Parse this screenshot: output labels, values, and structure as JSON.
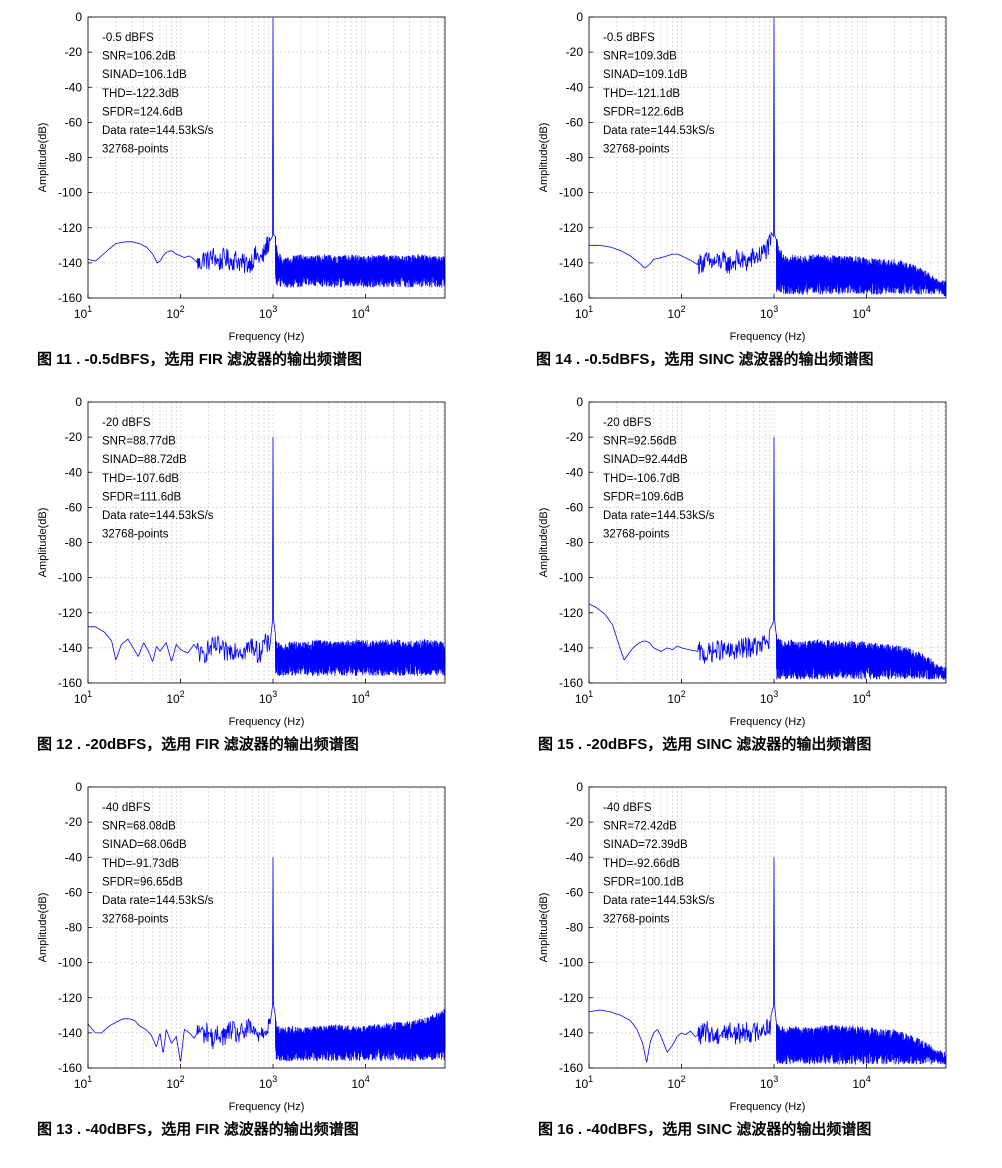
{
  "chart_data": [
    {
      "type": "line",
      "scale": {
        "x": "log",
        "y": "linear"
      },
      "xlabel": "Frequency (Hz)",
      "ylabel": "Amplitude(dB)",
      "xlim": [
        10,
        72265
      ],
      "ylim": [
        -160,
        0
      ],
      "x_ticks": [
        {
          "value": 10,
          "label": "10^1"
        },
        {
          "value": 100,
          "label": "10^2"
        },
        {
          "value": 1000,
          "label": "10^3"
        },
        {
          "value": 10000,
          "label": "10^4"
        }
      ],
      "y_ticks": [
        0,
        -20,
        -40,
        -60,
        -80,
        -100,
        -120,
        -140,
        -160
      ],
      "grid": true,
      "color": "#0000ff",
      "annotations": [
        "-0.5 dBFS",
        "SNR=106.2dB",
        "SINAD=106.1dB",
        "THD=-122.3dB",
        "SFDR=124.6dB",
        "Data rate=144.53kS/s",
        "32768-points"
      ],
      "caption": "图 11 . -0.5dBFS，选用 FIR 滤波器的输出频谱图",
      "series": [
        {
          "x": [
            10,
            12,
            14,
            17,
            20,
            25,
            30,
            36,
            43,
            50,
            56,
            60,
            65,
            70,
            80,
            90,
            100,
            110,
            125,
            140,
            160,
            180,
            200,
            230,
            260,
            300,
            350,
            400,
            480,
            560,
            650,
            760,
            880,
            940,
            970,
            1000,
            1030,
            1060,
            1150,
            1300,
            1600,
            2000,
            2600,
            3500,
            5000,
            7000,
            10000,
            15000,
            25000,
            40000,
            60000,
            72265
          ],
          "y": [
            -138,
            -139,
            -136,
            -132,
            -129,
            -128,
            -128,
            -129,
            -131,
            -135,
            -140,
            -139,
            -136,
            -134,
            -133,
            -135,
            -136,
            -137,
            -136,
            -138,
            -141,
            -137,
            -139,
            -136,
            -140,
            -137,
            -139,
            -138,
            -141,
            -140,
            -136,
            -138,
            -129,
            -126,
            -110,
            -0.5,
            -115,
            -128,
            -138,
            -141,
            -140,
            -139,
            -140,
            -139,
            -140,
            -139,
            -140,
            -139,
            -140,
            -139,
            -140,
            -140
          ],
          "noise_floor": [
            -154,
            -134
          ]
        }
      ]
    },
    {
      "type": "line",
      "scale": {
        "x": "log",
        "y": "linear"
      },
      "xlabel": "Frequency (Hz)",
      "ylabel": "Amplitude(dB)",
      "xlim": [
        10,
        72265
      ],
      "ylim": [
        -160,
        0
      ],
      "x_ticks": [
        {
          "value": 10,
          "label": "10^1"
        },
        {
          "value": 100,
          "label": "10^2"
        },
        {
          "value": 1000,
          "label": "10^3"
        },
        {
          "value": 10000,
          "label": "10^4"
        }
      ],
      "y_ticks": [
        0,
        -20,
        -40,
        -60,
        -80,
        -100,
        -120,
        -140,
        -160
      ],
      "grid": true,
      "color": "#0000ff",
      "annotations": [
        "-0.5 dBFS",
        "SNR=109.3dB",
        "SINAD=109.1dB",
        "THD=-121.1dB",
        "SFDR=122.6dB",
        "Data rate=144.53kS/s",
        "32768-points"
      ],
      "caption": "图 14 . -0.5dBFS，选用 SINC 滤波器的输出频谱图",
      "series": [
        {
          "x": [
            10,
            13,
            17,
            22,
            28,
            35,
            40,
            45,
            50,
            60,
            70,
            80,
            90,
            100,
            120,
            150,
            180,
            220,
            270,
            330,
            400,
            500,
            600,
            700,
            800,
            900,
            960,
            1000,
            1040,
            1100,
            1300,
            1600,
            2000,
            3000,
            5000,
            8000,
            12000,
            20000,
            30000,
            40000,
            50000,
            60000,
            72265
          ],
          "y": [
            -130,
            -130,
            -131,
            -133,
            -136,
            -140,
            -143,
            -141,
            -138,
            -137,
            -136,
            -135,
            -135,
            -136,
            -138,
            -141,
            -139,
            -140,
            -139,
            -141,
            -138,
            -140,
            -137,
            -136,
            -133,
            -130,
            -126,
            -0.5,
            -124,
            -133,
            -140,
            -139,
            -140,
            -139,
            -140,
            -140,
            -141,
            -142,
            -144,
            -147,
            -150,
            -154,
            -158
          ],
          "noise_floor": [
            -158,
            -134
          ]
        }
      ]
    },
    {
      "type": "line",
      "scale": {
        "x": "log",
        "y": "linear"
      },
      "xlabel": "Frequency (Hz)",
      "ylabel": "Amplitude(dB)",
      "xlim": [
        10,
        72265
      ],
      "ylim": [
        -160,
        0
      ],
      "x_ticks": [
        {
          "value": 10,
          "label": "10^1"
        },
        {
          "value": 100,
          "label": "10^2"
        },
        {
          "value": 1000,
          "label": "10^3"
        },
        {
          "value": 10000,
          "label": "10^4"
        }
      ],
      "y_ticks": [
        0,
        -20,
        -40,
        -60,
        -80,
        -100,
        -120,
        -140,
        -160
      ],
      "grid": true,
      "color": "#0000ff",
      "annotations": [
        "-20 dBFS",
        "SNR=88.77dB",
        "SINAD=88.72dB",
        "THD=-107.6dB",
        "SFDR=111.6dB",
        "Data rate=144.53kS/s",
        "32768-points"
      ],
      "caption": "图 12 . -20dBFS，选用 FIR 滤波器的输出频谱图",
      "series": [
        {
          "x": [
            10,
            12,
            15,
            18,
            20,
            23,
            27,
            30,
            35,
            40,
            45,
            50,
            55,
            60,
            70,
            80,
            90,
            100,
            120,
            140,
            170,
            200,
            250,
            300,
            400,
            500,
            600,
            700,
            800,
            900,
            960,
            1000,
            1040,
            1100,
            1300,
            1600,
            2000,
            3000,
            5000,
            8000,
            12000,
            20000,
            30000,
            45000,
            60000,
            72265
          ],
          "y": [
            -128,
            -128,
            -131,
            -136,
            -147,
            -138,
            -135,
            -139,
            -145,
            -137,
            -142,
            -148,
            -139,
            -142,
            -137,
            -148,
            -138,
            -141,
            -143,
            -138,
            -145,
            -141,
            -139,
            -143,
            -140,
            -142,
            -138,
            -144,
            -137,
            -139,
            -135,
            -20,
            -133,
            -140,
            -142,
            -140,
            -141,
            -139,
            -140,
            -139,
            -140,
            -139,
            -140,
            -139,
            -140,
            -140
          ],
          "noise_floor": [
            -156,
            -136
          ]
        }
      ]
    },
    {
      "type": "line",
      "scale": {
        "x": "log",
        "y": "linear"
      },
      "xlabel": "Frequency (Hz)",
      "ylabel": "Amplitude(dB)",
      "xlim": [
        10,
        72265
      ],
      "ylim": [
        -160,
        0
      ],
      "x_ticks": [
        {
          "value": 10,
          "label": "10^1"
        },
        {
          "value": 100,
          "label": "10^2"
        },
        {
          "value": 1000,
          "label": "10^3"
        },
        {
          "value": 10000,
          "label": "10^4"
        }
      ],
      "y_ticks": [
        0,
        -20,
        -40,
        -60,
        -80,
        -100,
        -120,
        -140,
        -160
      ],
      "grid": true,
      "color": "#0000ff",
      "annotations": [
        "-20 dBFS",
        "SNR=92.56dB",
        "SINAD=92.44dB",
        "THD=-106.7dB",
        "SFDR=109.6dB",
        "Data rate=144.53kS/s",
        "32768-points"
      ],
      "caption": "图 15 . -20dBFS，选用 SINC 滤波器的输出频谱图",
      "series": [
        {
          "x": [
            10,
            12,
            15,
            18,
            21,
            24,
            27,
            30,
            35,
            40,
            45,
            50,
            60,
            70,
            80,
            90,
            100,
            120,
            150,
            180,
            220,
            270,
            330,
            400,
            500,
            600,
            700,
            800,
            900,
            960,
            1000,
            1040,
            1100,
            1300,
            1600,
            2000,
            3000,
            5000,
            8000,
            12000,
            20000,
            30000,
            40000,
            50000,
            60000,
            72265
          ],
          "y": [
            -115,
            -117,
            -121,
            -127,
            -138,
            -147,
            -143,
            -140,
            -137,
            -136,
            -137,
            -140,
            -142,
            -140,
            -141,
            -139,
            -140,
            -141,
            -142,
            -144,
            -142,
            -141,
            -143,
            -141,
            -140,
            -139,
            -140,
            -137,
            -135,
            -132,
            -20,
            -131,
            -138,
            -140,
            -139,
            -140,
            -139,
            -140,
            -140,
            -141,
            -142,
            -144,
            -147,
            -150,
            -154,
            -158
          ],
          "noise_floor": [
            -158,
            -136
          ]
        }
      ]
    },
    {
      "type": "line",
      "scale": {
        "x": "log",
        "y": "linear"
      },
      "xlabel": "Frequency (Hz)",
      "ylabel": "Amplitude(dB)",
      "xlim": [
        10,
        72265
      ],
      "ylim": [
        -160,
        0
      ],
      "x_ticks": [
        {
          "value": 10,
          "label": "10^1"
        },
        {
          "value": 100,
          "label": "10^2"
        },
        {
          "value": 1000,
          "label": "10^3"
        },
        {
          "value": 10000,
          "label": "10^4"
        }
      ],
      "y_ticks": [
        0,
        -20,
        -40,
        -60,
        -80,
        -100,
        -120,
        -140,
        -160
      ],
      "grid": true,
      "color": "#0000ff",
      "annotations": [
        "-40 dBFS",
        "SNR=68.08dB",
        "SINAD=68.06dB",
        "THD=-91.73dB",
        "SFDR=96.65dB",
        "Data rate=144.53kS/s",
        "32768-points"
      ],
      "caption": "图 13 . -40dBFS，选用 FIR 滤波器的输出频谱图",
      "series": [
        {
          "x": [
            10,
            12,
            14,
            17,
            20,
            24,
            28,
            32,
            36,
            42,
            48,
            55,
            60,
            65,
            70,
            80,
            90,
            100,
            110,
            125,
            140,
            160,
            180,
            200,
            230,
            260,
            300,
            350,
            400,
            480,
            560,
            650,
            760,
            880,
            960,
            1000,
            1040,
            1100,
            1300,
            1600,
            2000,
            3000,
            5000,
            8000,
            12000,
            20000,
            30000,
            45000,
            60000,
            72265
          ],
          "y": [
            -135,
            -140,
            -140,
            -136,
            -134,
            -132,
            -132,
            -133,
            -136,
            -138,
            -141,
            -148,
            -140,
            -152,
            -138,
            -146,
            -142,
            -157,
            -138,
            -140,
            -143,
            -138,
            -141,
            -139,
            -145,
            -140,
            -142,
            -138,
            -141,
            -140,
            -137,
            -141,
            -139,
            -136,
            -133,
            -40,
            -131,
            -139,
            -141,
            -140,
            -141,
            -140,
            -139,
            -140,
            -139,
            -138,
            -137,
            -135,
            -132,
            -130
          ],
          "noise_floor": [
            -156,
            -130
          ]
        }
      ]
    },
    {
      "type": "line",
      "scale": {
        "x": "log",
        "y": "linear"
      },
      "xlabel": "Frequency (Hz)",
      "ylabel": "Amplitude(dB)",
      "xlim": [
        10,
        72265
      ],
      "ylim": [
        -160,
        0
      ],
      "x_ticks": [
        {
          "value": 10,
          "label": "10^1"
        },
        {
          "value": 100,
          "label": "10^2"
        },
        {
          "value": 1000,
          "label": "10^3"
        },
        {
          "value": 10000,
          "label": "10^4"
        }
      ],
      "y_ticks": [
        0,
        -20,
        -40,
        -60,
        -80,
        -100,
        -120,
        -140,
        -160
      ],
      "grid": true,
      "color": "#0000ff",
      "annotations": [
        "-40 dBFS",
        "SNR=72.42dB",
        "SINAD=72.39dB",
        "THD=-92.66dB",
        "SFDR=100.1dB",
        "Data rate=144.53kS/s",
        "32768-points"
      ],
      "caption": "图 16 . -40dBFS，选用 SINC 滤波器的输出频谱图",
      "series": [
        {
          "x": [
            10,
            13,
            17,
            22,
            28,
            33,
            38,
            42,
            46,
            50,
            55,
            60,
            70,
            80,
            90,
            100,
            110,
            125,
            140,
            160,
            190,
            230,
            270,
            330,
            400,
            500,
            600,
            700,
            800,
            900,
            960,
            1000,
            1040,
            1100,
            1300,
            1600,
            2000,
            3000,
            5000,
            8000,
            12000,
            20000,
            30000,
            40000,
            50000,
            60000,
            72265
          ],
          "y": [
            -128,
            -127,
            -128,
            -130,
            -133,
            -138,
            -146,
            -157,
            -145,
            -140,
            -138,
            -142,
            -151,
            -147,
            -142,
            -140,
            -141,
            -139,
            -142,
            -141,
            -139,
            -142,
            -140,
            -139,
            -141,
            -139,
            -140,
            -138,
            -137,
            -136,
            -134,
            -40,
            -133,
            -139,
            -141,
            -140,
            -141,
            -140,
            -139,
            -140,
            -141,
            -142,
            -145,
            -148,
            -151,
            -154,
            -157
          ],
          "noise_floor": [
            -158,
            -136
          ]
        }
      ]
    }
  ]
}
